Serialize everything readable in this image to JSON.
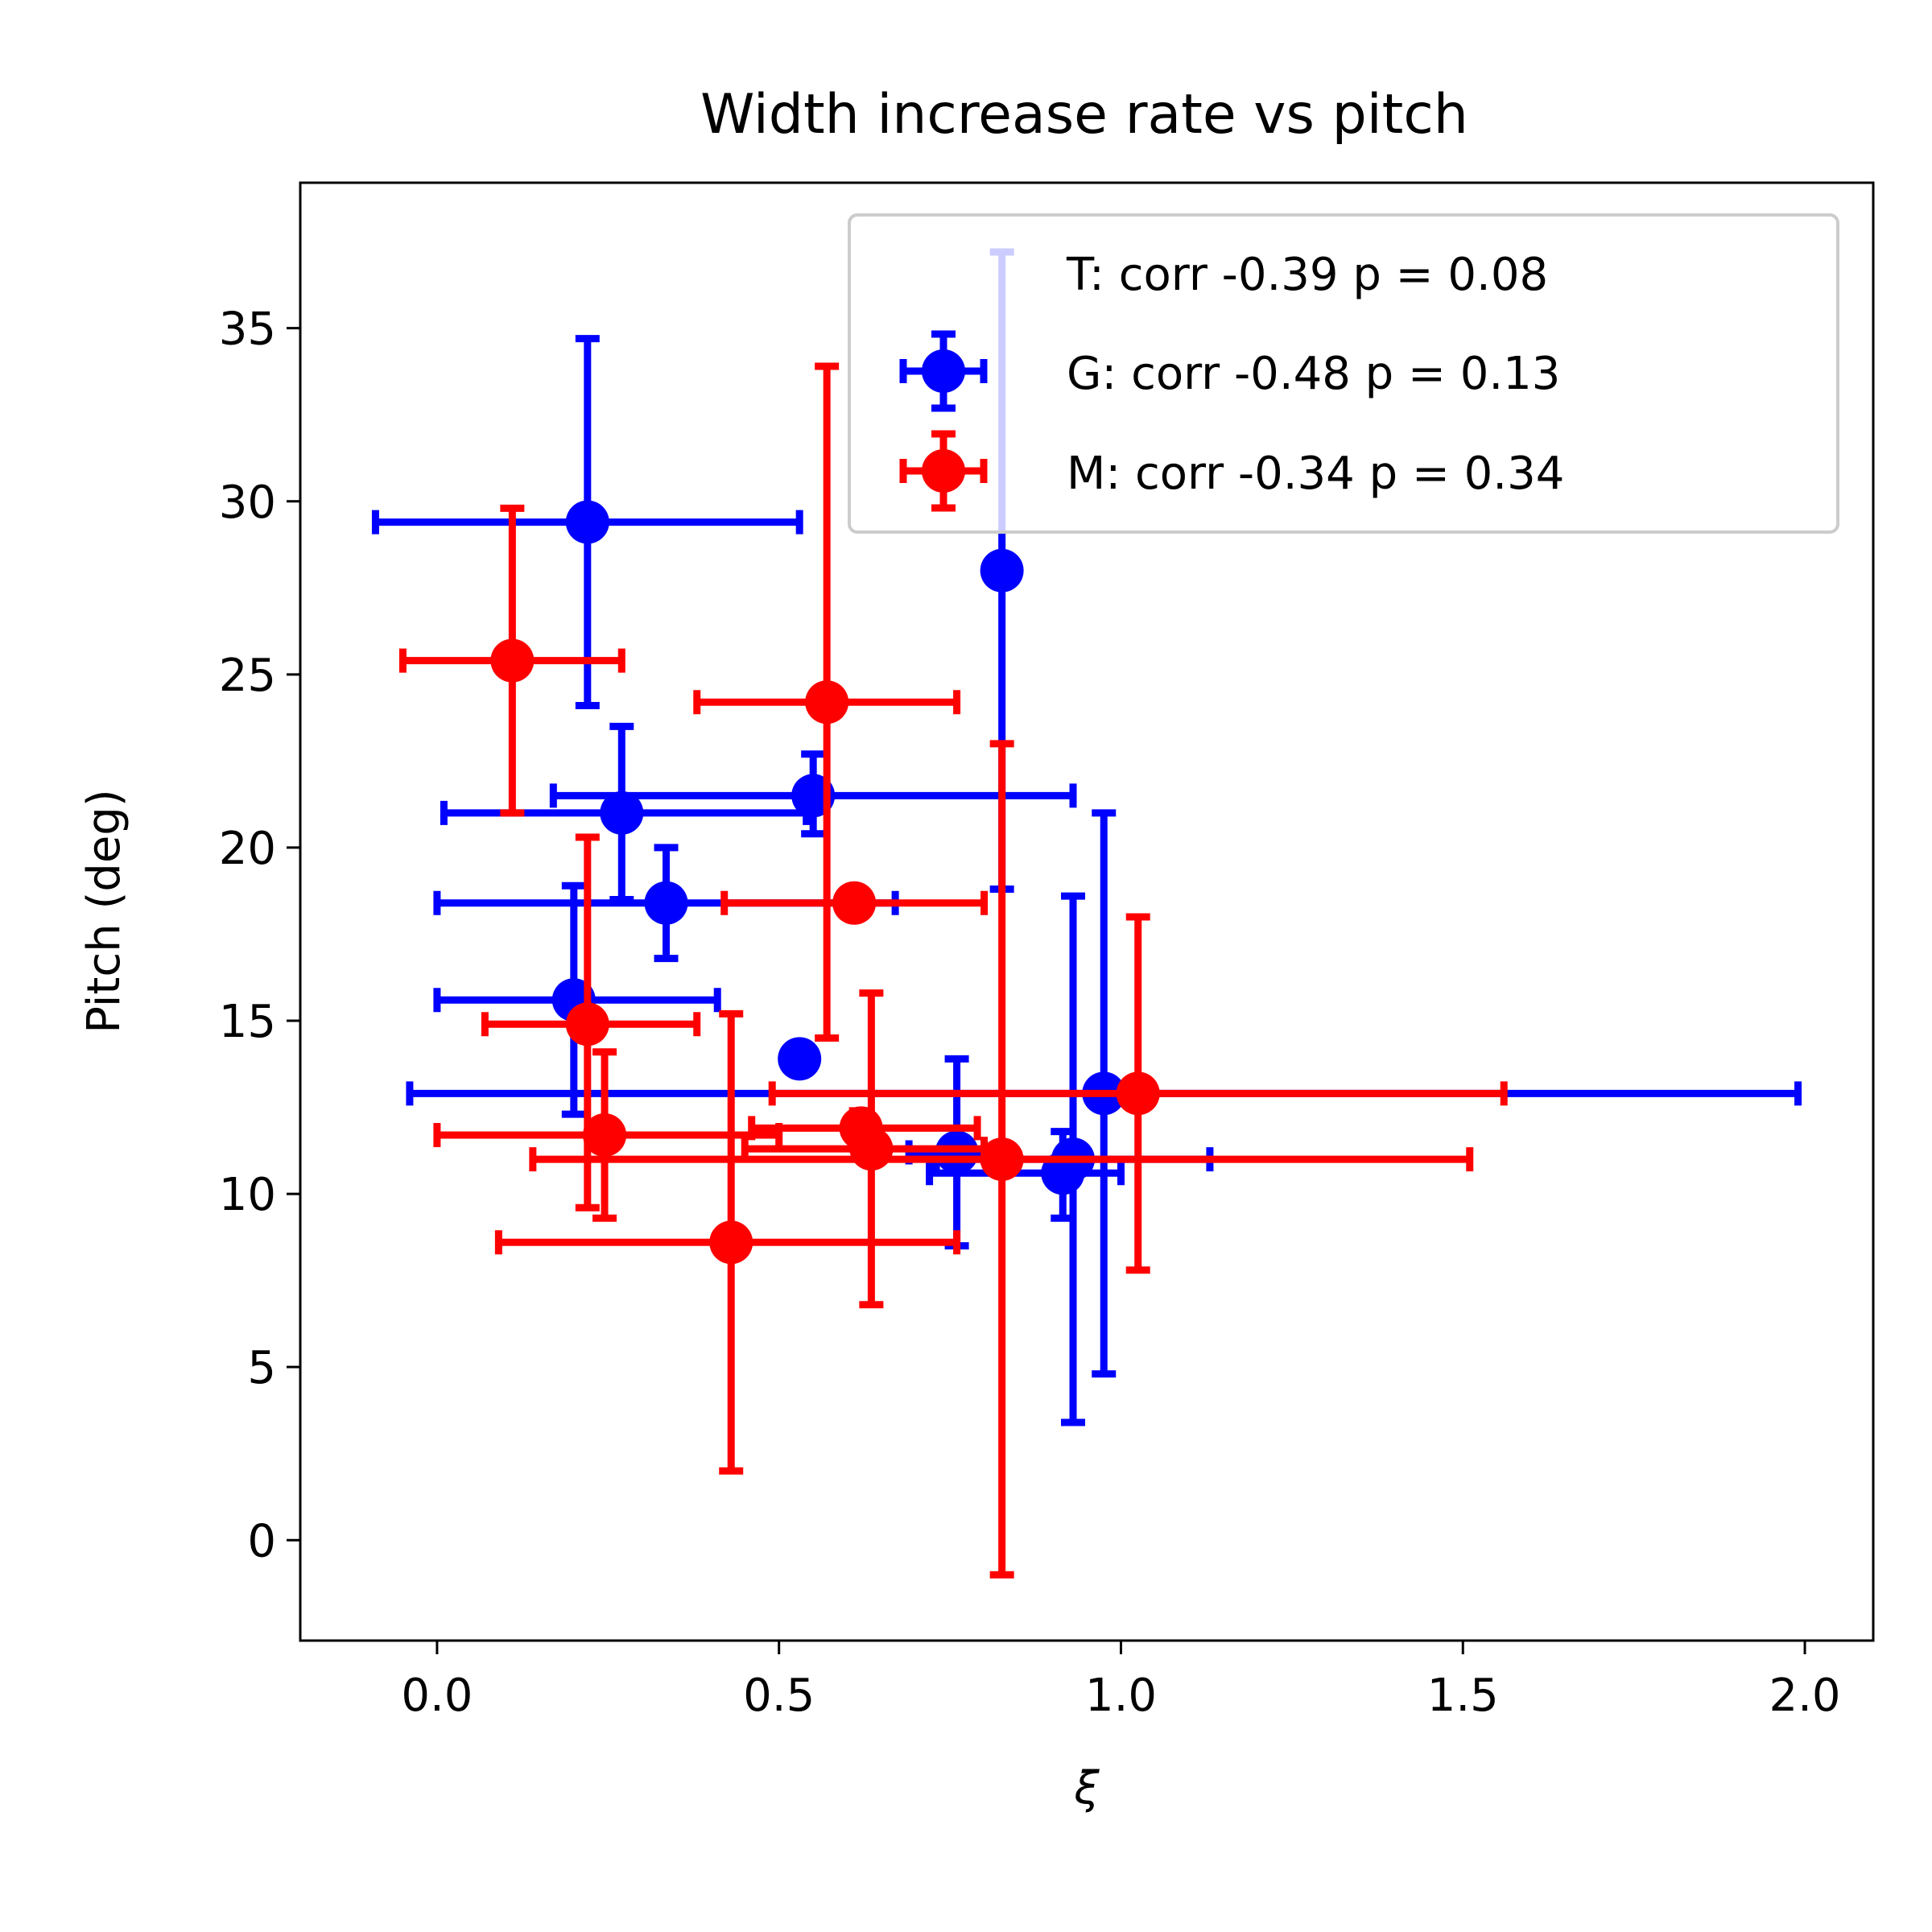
{
  "chart_data": {
    "type": "scatter",
    "title": "Width increase rate vs pitch",
    "xlabel": "ξ",
    "ylabel": "Pitch (deg)",
    "xlim": [
      -0.2,
      2.1
    ],
    "ylim": [
      -2.9,
      39.2
    ],
    "xticks": [
      0.0,
      0.5,
      1.0,
      1.5,
      2.0
    ],
    "xtick_labels": [
      "0.0",
      "0.5",
      "1.0",
      "1.5",
      "2.0"
    ],
    "yticks": [
      0,
      5,
      10,
      15,
      20,
      25,
      30,
      35
    ],
    "ytick_labels": [
      "0",
      "5",
      "10",
      "15",
      "20",
      "25",
      "30",
      "35"
    ],
    "grid": false,
    "legend_position": "top-right",
    "series": [
      {
        "name": "T",
        "label": "T: corr -0.39 p = 0.08",
        "color": "#ff0000",
        "show_in_plot": false,
        "points": []
      },
      {
        "name": "G",
        "label": "G: corr -0.48 p = 0.13",
        "color": "#0000ff",
        "points": [
          {
            "x": 0.22,
            "y": 29.4,
            "xlo": -0.09,
            "xhi": 0.53,
            "ylo": 24.1,
            "yhi": 34.7
          },
          {
            "x": 0.826,
            "y": 28.0,
            "xlo": 0.826,
            "xhi": 0.826,
            "ylo": 18.8,
            "yhi": 37.2
          },
          {
            "x": 0.55,
            "y": 21.5,
            "xlo": 0.17,
            "xhi": 0.93,
            "ylo": 20.4,
            "yhi": 22.7
          },
          {
            "x": 0.27,
            "y": 21.0,
            "xlo": 0.01,
            "xhi": 0.54,
            "ylo": 18.5,
            "yhi": 23.5
          },
          {
            "x": 0.335,
            "y": 18.4,
            "xlo": 0.0,
            "xhi": 0.67,
            "ylo": 16.8,
            "yhi": 20.0
          },
          {
            "x": 0.2,
            "y": 15.6,
            "xlo": 0.0,
            "xhi": 0.41,
            "ylo": 12.3,
            "yhi": 18.9
          },
          {
            "x": 0.53,
            "y": 13.9,
            "xlo": 0.53,
            "xhi": 0.53,
            "ylo": 13.9,
            "yhi": 13.9
          },
          {
            "x": 0.975,
            "y": 12.9,
            "xlo": -0.04,
            "xhi": 1.99,
            "ylo": 4.8,
            "yhi": 21.0
          },
          {
            "x": 0.76,
            "y": 11.2,
            "xlo": 0.69,
            "xhi": 0.8,
            "ylo": 8.5,
            "yhi": 13.9
          },
          {
            "x": 0.93,
            "y": 11.0,
            "xlo": 0.73,
            "xhi": 1.13,
            "ylo": 3.4,
            "yhi": 18.6
          },
          {
            "x": 0.915,
            "y": 10.6,
            "xlo": 0.72,
            "xhi": 1.0,
            "ylo": 9.3,
            "yhi": 11.8
          }
        ]
      },
      {
        "name": "M",
        "label": "M: corr -0.34 p = 0.34",
        "color": "#ff0000",
        "points": [
          {
            "x": 0.11,
            "y": 25.4,
            "xlo": -0.05,
            "xhi": 0.27,
            "ylo": 21.0,
            "yhi": 29.8
          },
          {
            "x": 0.57,
            "y": 24.2,
            "xlo": 0.38,
            "xhi": 0.76,
            "ylo": 14.5,
            "yhi": 33.9
          },
          {
            "x": 0.61,
            "y": 18.4,
            "xlo": 0.42,
            "xhi": 0.8,
            "ylo": 18.0,
            "yhi": 18.8
          },
          {
            "x": 0.22,
            "y": 14.9,
            "xlo": 0.07,
            "xhi": 0.38,
            "ylo": 9.6,
            "yhi": 20.3
          },
          {
            "x": 1.025,
            "y": 12.9,
            "xlo": 0.49,
            "xhi": 1.56,
            "ylo": 7.8,
            "yhi": 18.0
          },
          {
            "x": 0.62,
            "y": 11.9,
            "xlo": 0.46,
            "xhi": 0.79,
            "ylo": 11.3,
            "yhi": 12.4
          },
          {
            "x": 0.245,
            "y": 11.7,
            "xlo": 0.0,
            "xhi": 0.5,
            "ylo": 9.3,
            "yhi": 14.1
          },
          {
            "x": 0.635,
            "y": 11.3,
            "xlo": 0.45,
            "xhi": 0.8,
            "ylo": 6.8,
            "yhi": 15.8
          },
          {
            "x": 0.826,
            "y": 11.0,
            "xlo": 0.14,
            "xhi": 1.51,
            "ylo": -1.0,
            "yhi": 23.0
          },
          {
            "x": 0.43,
            "y": 8.6,
            "xlo": 0.09,
            "xhi": 0.76,
            "ylo": 2.0,
            "yhi": 15.2
          }
        ]
      }
    ]
  }
}
